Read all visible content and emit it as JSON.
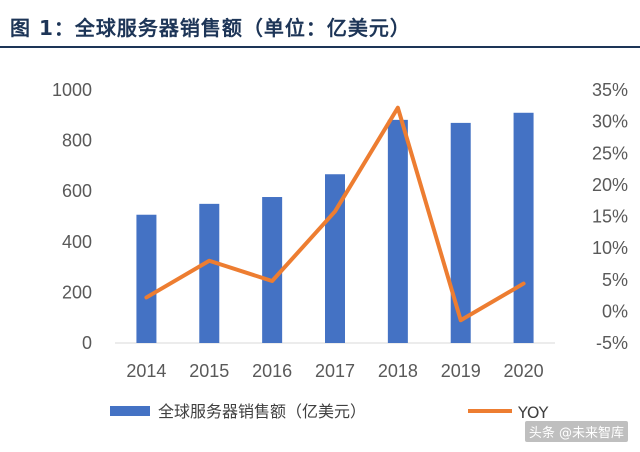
{
  "title": "图  1：全球服务器销售额（单位：亿美元）",
  "watermark": "头条 @未来智库",
  "chart_data": {
    "type": "bar",
    "categories": [
      "2014",
      "2015",
      "2016",
      "2017",
      "2018",
      "2019",
      "2020"
    ],
    "series": [
      {
        "name": "全球服务器销售额（亿美元）",
        "type": "bar",
        "axis": "left",
        "values": [
          507,
          550,
          577,
          667,
          882,
          870,
          910
        ],
        "color": "#4472c4"
      },
      {
        "name": "YOY",
        "type": "line",
        "axis": "right",
        "values": [
          2.2,
          8.0,
          4.8,
          15.8,
          32.2,
          -1.4,
          4.4
        ],
        "color": "#ed7d31"
      }
    ],
    "y_left": {
      "min": 0,
      "max": 1000,
      "ticks": [
        "0",
        "200",
        "400",
        "600",
        "800",
        "1000"
      ]
    },
    "y_right": {
      "min": -5,
      "max": 35,
      "ticks": [
        "-5%",
        "0%",
        "5%",
        "10%",
        "15%",
        "20%",
        "25%",
        "30%",
        "35%"
      ]
    },
    "grid": false,
    "legend_position": "bottom"
  }
}
